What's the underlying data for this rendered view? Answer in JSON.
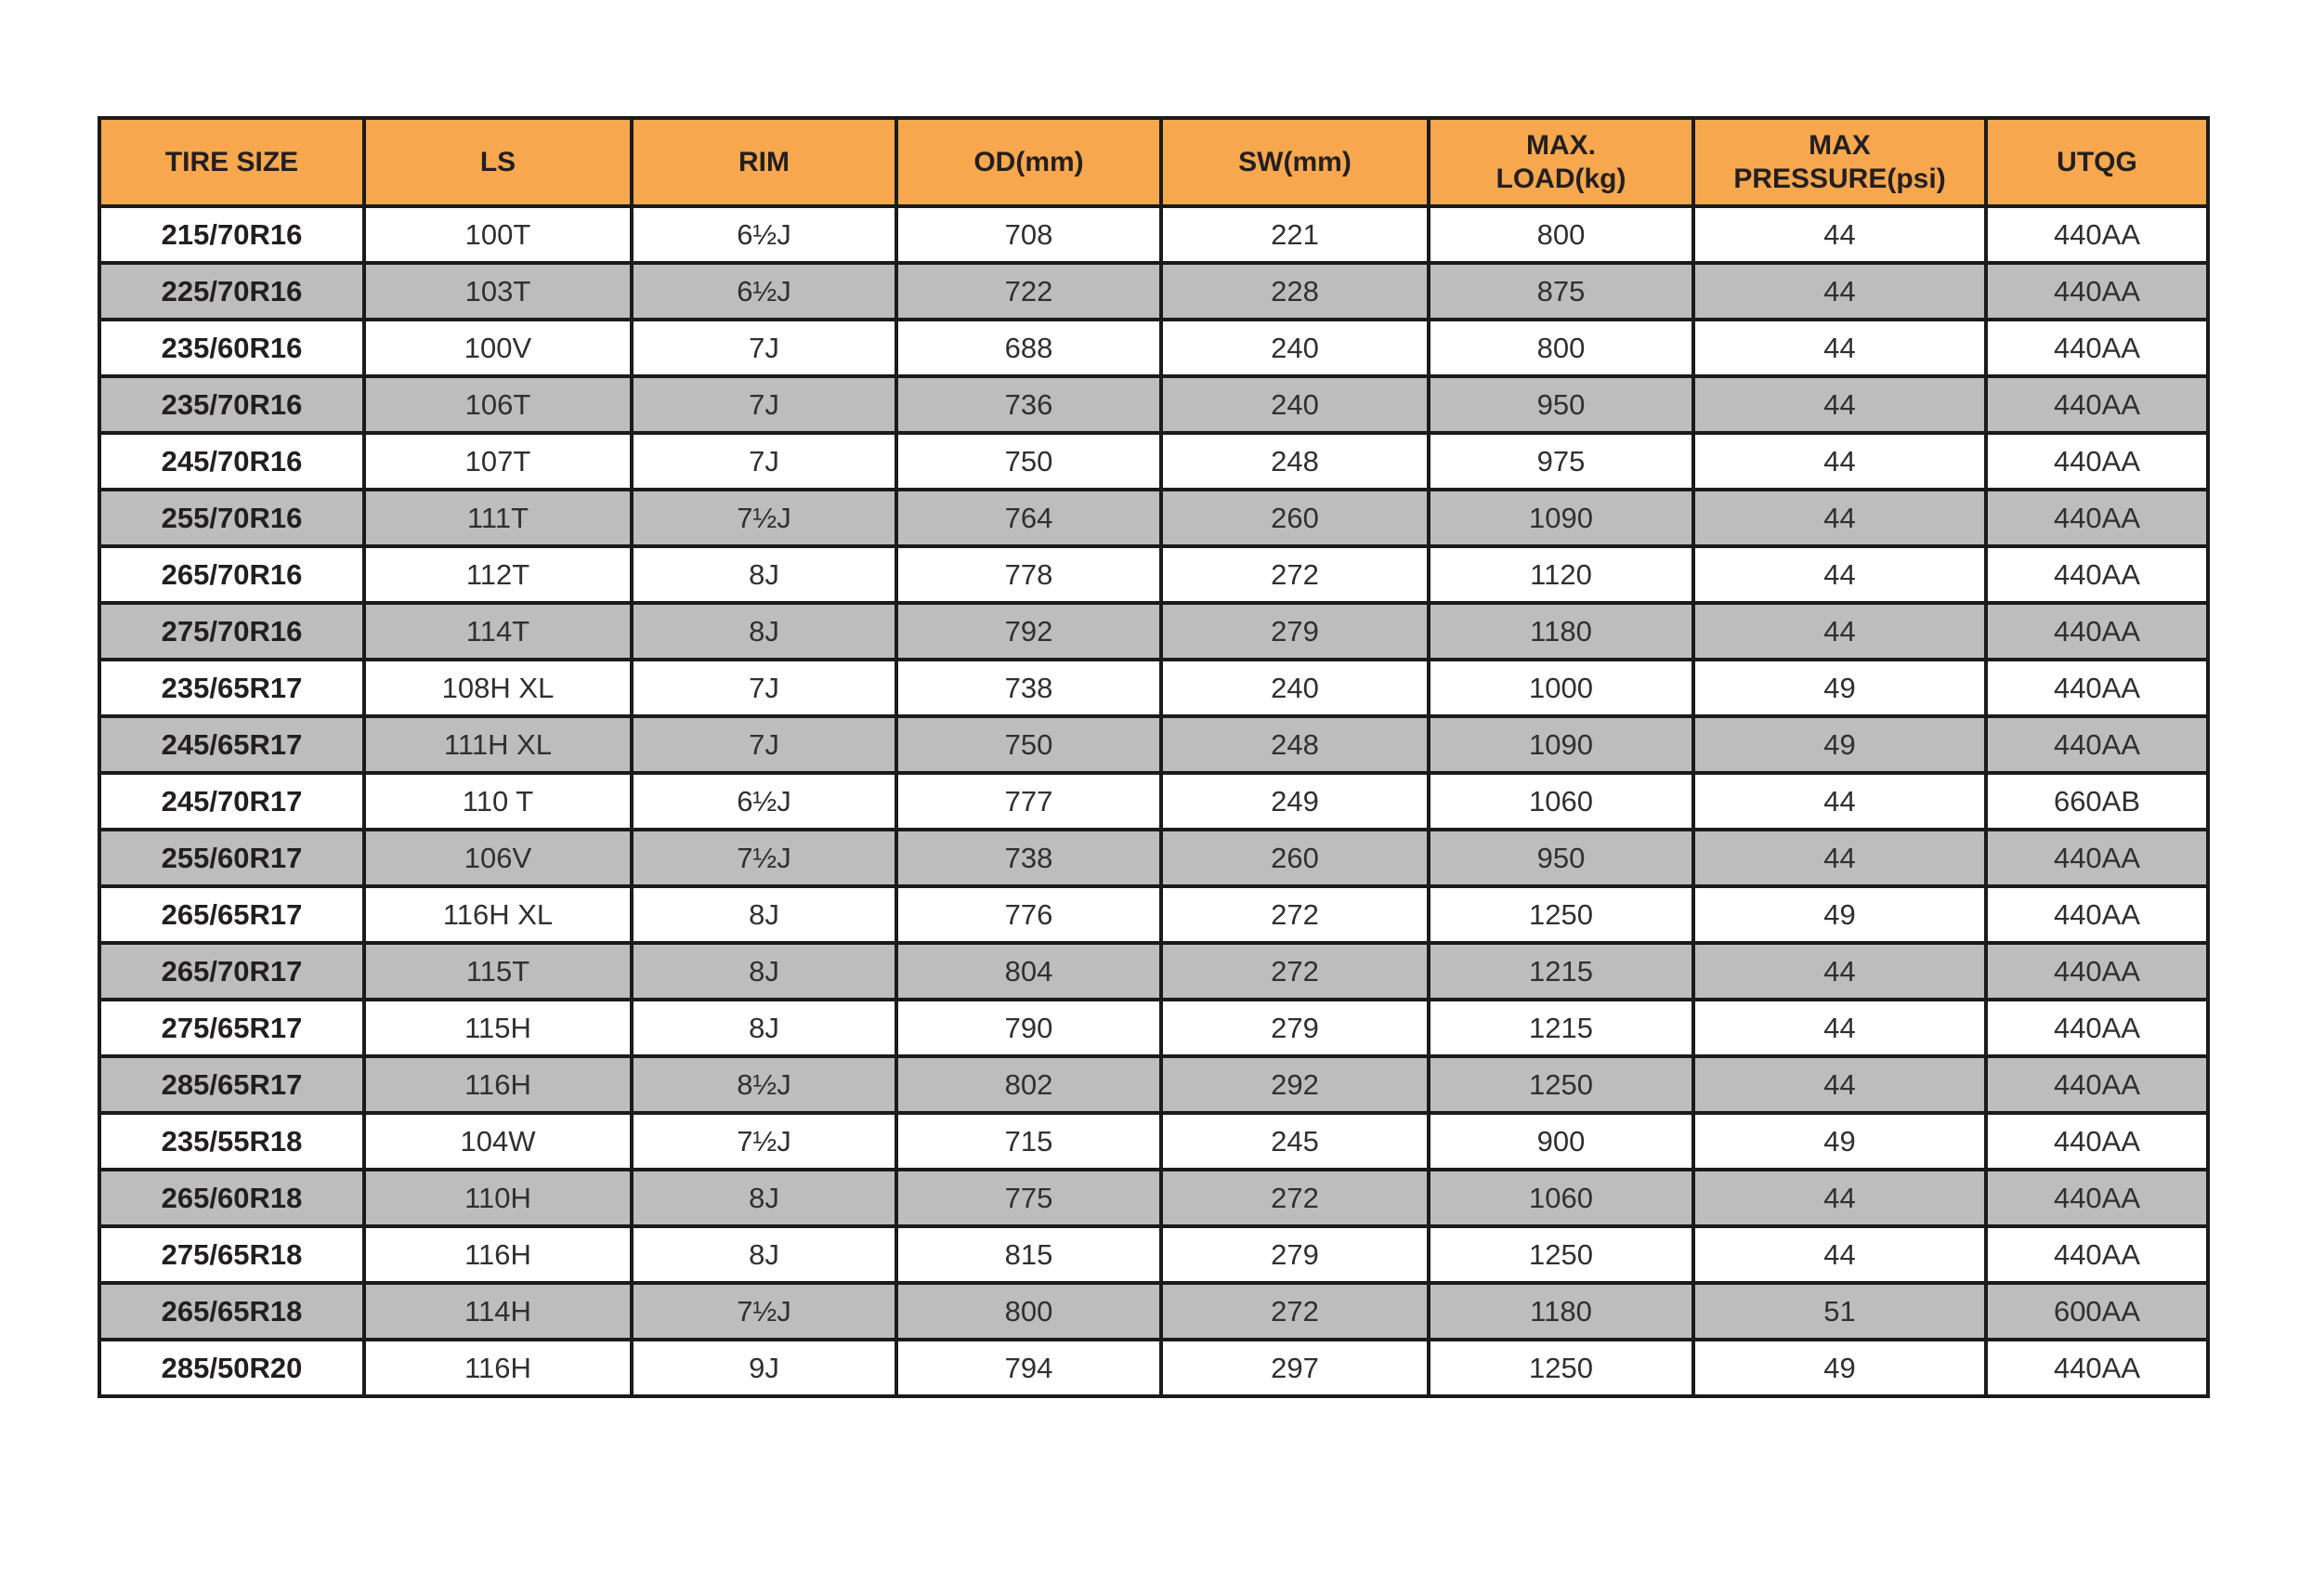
{
  "colors": {
    "header_bg": "#F7A74E",
    "alt_row_bg": "#BDBDBD",
    "border": "#1B1B1B",
    "header_text": "#231F20",
    "cell_text": "#303030",
    "page_bg": "#FFFFFF"
  },
  "table": {
    "columns": [
      {
        "key": "tire-size",
        "label": "TIRE SIZE"
      },
      {
        "key": "ls",
        "label": "LS"
      },
      {
        "key": "rim",
        "label": "RIM"
      },
      {
        "key": "od-mm",
        "label": "OD(mm)"
      },
      {
        "key": "sw-mm",
        "label": "SW(mm)"
      },
      {
        "key": "max-load-kg",
        "label": "MAX.\nLOAD(kg)"
      },
      {
        "key": "max-pressure-psi",
        "label": "MAX\nPRESSURE(psi)"
      },
      {
        "key": "utqg",
        "label": "UTQG"
      }
    ],
    "rows": [
      [
        "215/70R16",
        "100T",
        "6½J",
        "708",
        "221",
        "800",
        "44",
        "440AA"
      ],
      [
        "225/70R16",
        "103T",
        "6½J",
        "722",
        "228",
        "875",
        "44",
        "440AA"
      ],
      [
        "235/60R16",
        "100V",
        "7J",
        "688",
        "240",
        "800",
        "44",
        "440AA"
      ],
      [
        "235/70R16",
        "106T",
        "7J",
        "736",
        "240",
        "950",
        "44",
        "440AA"
      ],
      [
        "245/70R16",
        "107T",
        "7J",
        "750",
        "248",
        "975",
        "44",
        "440AA"
      ],
      [
        "255/70R16",
        "111T",
        "7½J",
        "764",
        "260",
        "1090",
        "44",
        "440AA"
      ],
      [
        "265/70R16",
        "112T",
        "8J",
        "778",
        "272",
        "1120",
        "44",
        "440AA"
      ],
      [
        "275/70R16",
        "114T",
        "8J",
        "792",
        "279",
        "1180",
        "44",
        "440AA"
      ],
      [
        "235/65R17",
        "108H XL",
        "7J",
        "738",
        "240",
        "1000",
        "49",
        "440AA"
      ],
      [
        "245/65R17",
        "111H XL",
        "7J",
        "750",
        "248",
        "1090",
        "49",
        "440AA"
      ],
      [
        "245/70R17",
        "110 T",
        "6½J",
        "777",
        "249",
        "1060",
        "44",
        "660AB"
      ],
      [
        "255/60R17",
        "106V",
        "7½J",
        "738",
        "260",
        "950",
        "44",
        "440AA"
      ],
      [
        "265/65R17",
        "116H XL",
        "8J",
        "776",
        "272",
        "1250",
        "49",
        "440AA"
      ],
      [
        "265/70R17",
        "115T",
        "8J",
        "804",
        "272",
        "1215",
        "44",
        "440AA"
      ],
      [
        "275/65R17",
        "115H",
        "8J",
        "790",
        "279",
        "1215",
        "44",
        "440AA"
      ],
      [
        "285/65R17",
        "116H",
        "8½J",
        "802",
        "292",
        "1250",
        "44",
        "440AA"
      ],
      [
        "235/55R18",
        "104W",
        "7½J",
        "715",
        "245",
        "900",
        "49",
        "440AA"
      ],
      [
        "265/60R18",
        "110H",
        "8J",
        "775",
        "272",
        "1060",
        "44",
        "440AA"
      ],
      [
        "275/65R18",
        "116H",
        "8J",
        "815",
        "279",
        "1250",
        "44",
        "440AA"
      ],
      [
        "265/65R18",
        "114H",
        "7½J",
        "800",
        "272",
        "1180",
        "51",
        "600AA"
      ],
      [
        "285/50R20",
        "116H",
        "9J",
        "794",
        "297",
        "1250",
        "49",
        "440AA"
      ]
    ]
  }
}
